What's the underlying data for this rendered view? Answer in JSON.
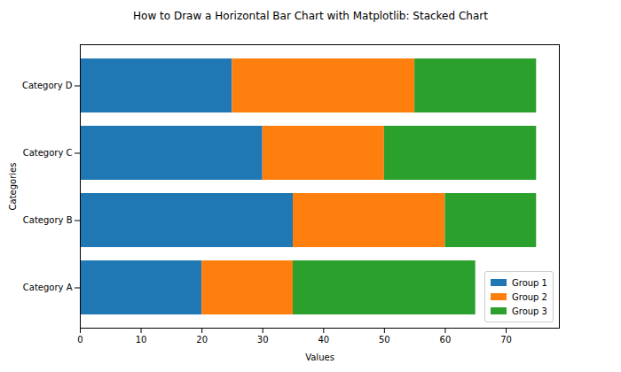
{
  "chart_data": {
    "type": "bar",
    "orientation": "horizontal",
    "stacked": true,
    "title": "How to Draw a Horizontal Bar Chart with Matplotlib: Stacked Chart",
    "x_label": "Values",
    "y_label": "Categories",
    "categories": [
      "Category A",
      "Category B",
      "Category C",
      "Category D"
    ],
    "series": [
      {
        "name": "Group 1",
        "color": "#1f77b4",
        "values": [
          20,
          35,
          30,
          25
        ]
      },
      {
        "name": "Group 2",
        "color": "#ff7f0e",
        "values": [
          15,
          25,
          20,
          30
        ]
      },
      {
        "name": "Group 3",
        "color": "#2ca02c",
        "values": [
          30,
          15,
          25,
          20
        ]
      }
    ],
    "xlim": [
      0,
      78.75
    ],
    "xticks": [
      0,
      10,
      20,
      30,
      40,
      50,
      60,
      70
    ],
    "grid": false,
    "legend": "lower right"
  }
}
